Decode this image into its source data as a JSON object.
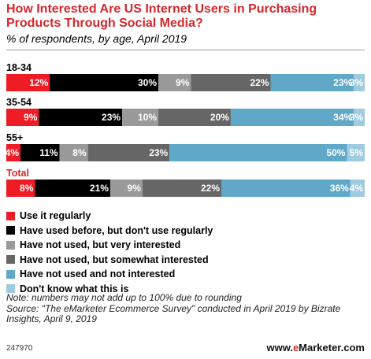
{
  "title": "How Interested Are US Internet Users in Purchasing Products Through Social Media?",
  "subtitle": "% of respondents, by age, April 2019",
  "colors": {
    "title": "#d6262c",
    "series": [
      "#ee1c25",
      "#000000",
      "#999999",
      "#666666",
      "#5fa8c8",
      "#9ecbe0"
    ]
  },
  "chart_data": {
    "type": "bar",
    "orientation": "horizontal",
    "stacked": true,
    "categories": [
      "18-34",
      "35-54",
      "55+",
      "Total"
    ],
    "category_colors": [
      "#000000",
      "#000000",
      "#000000",
      "#d6262c"
    ],
    "series": [
      {
        "name": "Use it regularly",
        "color": "#ee1c25",
        "values": [
          12,
          9,
          4,
          8
        ]
      },
      {
        "name": "Have used before, but don't use regularly",
        "color": "#000000",
        "values": [
          30,
          23,
          11,
          21
        ]
      },
      {
        "name": "Have not used, but very interested",
        "color": "#999999",
        "values": [
          9,
          10,
          8,
          9
        ]
      },
      {
        "name": "Have not used, but somewhat interested",
        "color": "#666666",
        "values": [
          22,
          20,
          23,
          22
        ]
      },
      {
        "name": "Have not used and not interested",
        "color": "#5fa8c8",
        "values": [
          23,
          34,
          50,
          36
        ]
      },
      {
        "name": "Don't know what this is",
        "color": "#9ecbe0",
        "values": [
          3,
          3,
          5,
          4
        ]
      }
    ],
    "value_suffix": "%",
    "legend_position": "bottom-left",
    "grid": false
  },
  "legend": [
    "Use it regularly",
    "Have used before, but don't use regularly",
    "Have not used, but very interested",
    "Have not used, but somewhat interested",
    "Have not used and not interested",
    "Don't know what this is"
  ],
  "footnote": {
    "note": "Note: numbers may not add up to 100% due to rounding",
    "source": "Source: \"The eMarketer Ecommerce Survey\" conducted in April 2019 by Bizrate Insights, April 9, 2019"
  },
  "footer": {
    "chart_id": "247970",
    "brand_prefix": "www.",
    "brand_e": "e",
    "brand_suffix": "Marketer.com"
  }
}
